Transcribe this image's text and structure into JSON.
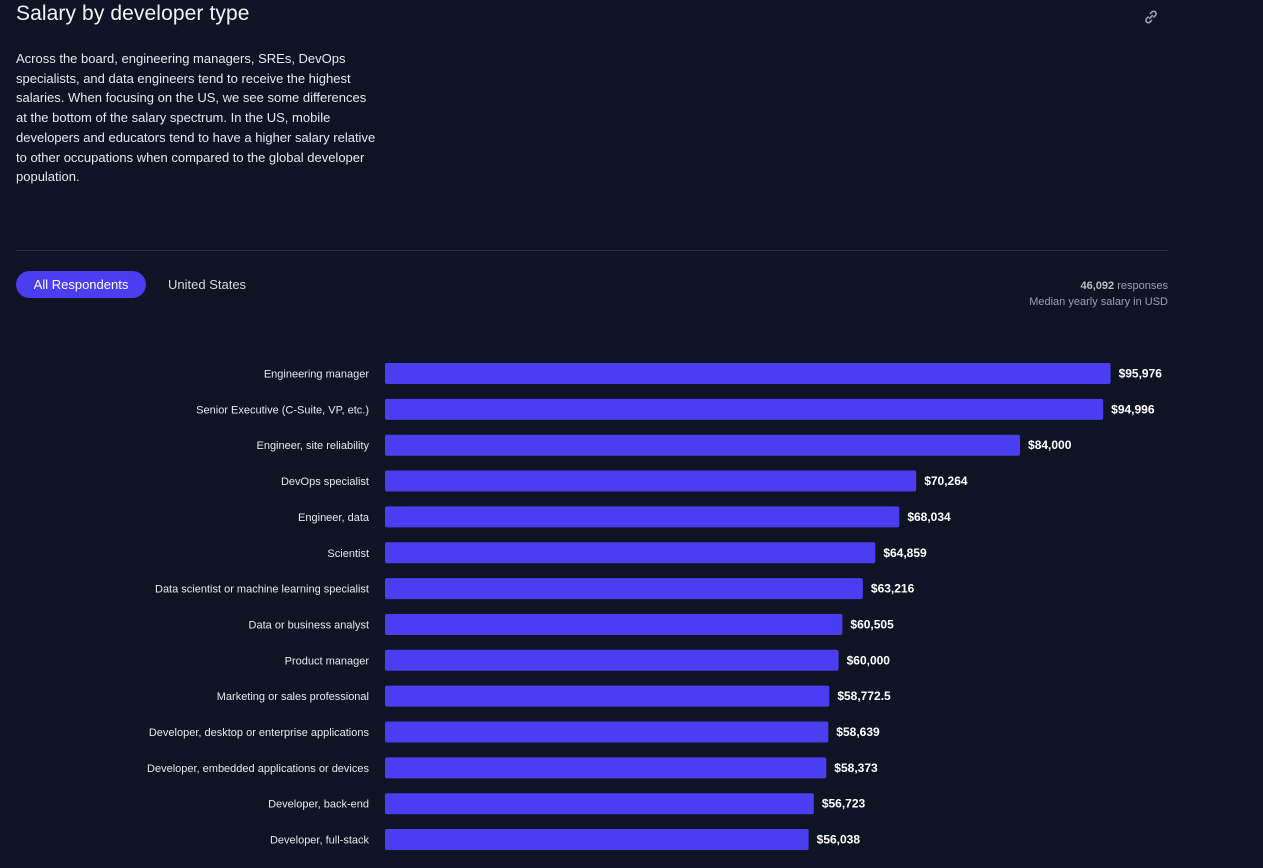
{
  "header": {
    "title": "Salary by developer type",
    "description": "Across the board, engineering managers, SREs, DevOps specialists, and data engineers tend to receive the highest salaries. When focusing on the US, we see some differences at the bottom of the salary spectrum. In the US, mobile developers and educators tend to have a higher salary relative to other occupations when compared to the global developer population.",
    "link_icon": "link-icon"
  },
  "tabs": [
    {
      "label": "All Respondents",
      "active": true
    },
    {
      "label": "United States",
      "active": false
    }
  ],
  "meta": {
    "responses_count": "46,092",
    "responses_label": "responses",
    "subtitle": "Median yearly salary in USD"
  },
  "colors": {
    "background": "#0f1425",
    "bar": "#4b3df0",
    "text": "#e6e8ee"
  },
  "chart_data": {
    "type": "bar",
    "orientation": "horizontal",
    "title": "Salary by developer type",
    "subtitle": "Median yearly salary in USD",
    "xlim": [
      0,
      100000
    ],
    "grid": false,
    "categories": [
      "Engineering manager",
      "Senior Executive (C-Suite, VP, etc.)",
      "Engineer, site reliability",
      "DevOps specialist",
      "Engineer, data",
      "Scientist",
      "Data scientist or machine learning specialist",
      "Data or business analyst",
      "Product manager",
      "Marketing or sales professional",
      "Developer, desktop or enterprise applications",
      "Developer, embedded applications or devices",
      "Developer, back-end",
      "Developer, full-stack"
    ],
    "values": [
      95976,
      94996,
      84000,
      70264,
      68034,
      64859,
      63216,
      60505,
      60000,
      58772.5,
      58639,
      58373,
      56723,
      56038
    ],
    "value_labels": [
      "$95,976",
      "$94,996",
      "$84,000",
      "$70,264",
      "$68,034",
      "$64,859",
      "$63,216",
      "$60,505",
      "$60,000",
      "$58,772.5",
      "$58,639",
      "$58,373",
      "$56,723",
      "$56,038"
    ]
  }
}
